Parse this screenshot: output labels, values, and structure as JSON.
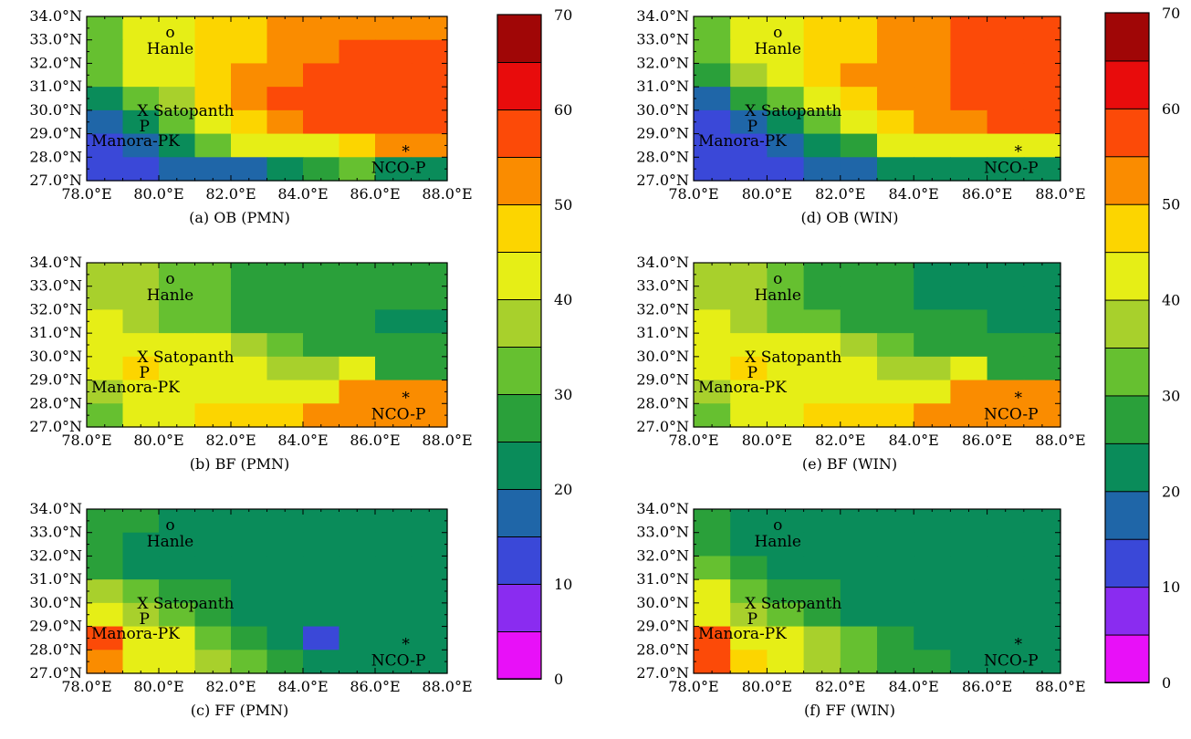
{
  "colorbar": {
    "levels": [
      0,
      5,
      10,
      15,
      20,
      25,
      30,
      35,
      40,
      45,
      50,
      55,
      60,
      65,
      70
    ],
    "colors": [
      "#e810f8",
      "#8a2cf0",
      "#3a48d8",
      "#1f66a8",
      "#0a8c5a",
      "#2aa03a",
      "#66c030",
      "#a8d02c",
      "#e6ee16",
      "#fcd500",
      "#fa8c00",
      "#fc4a08",
      "#e80c0c",
      "#a00606"
    ],
    "tick_labels": [
      "0",
      "10",
      "20",
      "30",
      "40",
      "50",
      "60",
      "70"
    ],
    "tick_values": [
      0,
      10,
      20,
      30,
      40,
      50,
      60,
      70
    ]
  },
  "axes": {
    "x_ticks": [
      "78.0°E",
      "80.0°E",
      "82.0°E",
      "84.0°E",
      "86.0°E",
      "88.0°E"
    ],
    "y_ticks": [
      "34.0°N",
      "33.0°N",
      "32.0°N",
      "31.0°N",
      "30.0°N",
      "29.0°N",
      "28.0°N",
      "27.0°N"
    ],
    "xlim": [
      78,
      88
    ],
    "ylim": [
      27,
      34
    ]
  },
  "sites": [
    {
      "marker": "o",
      "name": "Hanle",
      "lon": 79.0,
      "lat": 32.8
    },
    {
      "marker": "X",
      "name": "Satopanth",
      "lon": 79.25,
      "lat": 30.0
    },
    {
      "marker": "P",
      "name": "Manora-PK",
      "lon": 79.45,
      "lat": 29.25
    },
    {
      "marker": "*",
      "name": "NCO-P",
      "lon": 86.8,
      "lat": 27.95
    }
  ],
  "chart_data": [
    {
      "type": "heatmap",
      "caption": "(a) OB (PMN)",
      "x_lon_range": [
        78,
        88
      ],
      "y_lat_range": [
        27,
        34
      ],
      "cols": 10,
      "rows": 7,
      "values_rows_north_to_south": [
        [
          32,
          42,
          44,
          48,
          48,
          50,
          52,
          52,
          52,
          54
        ],
        [
          34,
          40,
          44,
          48,
          48,
          52,
          52,
          56,
          56,
          56
        ],
        [
          32,
          40,
          44,
          48,
          52,
          52,
          56,
          56,
          56,
          56
        ],
        [
          24,
          32,
          38,
          48,
          52,
          56,
          56,
          56,
          58,
          58
        ],
        [
          17,
          24,
          32,
          44,
          48,
          52,
          56,
          56,
          56,
          56
        ],
        [
          12,
          17,
          24,
          32,
          44,
          44,
          44,
          48,
          52,
          52
        ],
        [
          12,
          12,
          17,
          17,
          17,
          24,
          28,
          32,
          24,
          24
        ]
      ]
    },
    {
      "type": "heatmap",
      "caption": "(d) OB (WIN)",
      "x_lon_range": [
        78,
        88
      ],
      "y_lat_range": [
        27,
        34
      ],
      "cols": 10,
      "rows": 7,
      "values_rows_north_to_south": [
        [
          34,
          42,
          44,
          48,
          48,
          52,
          52,
          56,
          56,
          56
        ],
        [
          32,
          40,
          44,
          48,
          48,
          52,
          52,
          56,
          56,
          56
        ],
        [
          28,
          36,
          44,
          48,
          52,
          52,
          52,
          56,
          56,
          56
        ],
        [
          17,
          28,
          32,
          40,
          48,
          52,
          52,
          56,
          56,
          56
        ],
        [
          12,
          17,
          24,
          32,
          44,
          48,
          52,
          52,
          56,
          56
        ],
        [
          12,
          12,
          17,
          24,
          28,
          40,
          44,
          44,
          44,
          44
        ],
        [
          12,
          12,
          12,
          17,
          17,
          24,
          24,
          24,
          24,
          24
        ]
      ]
    },
    {
      "type": "heatmap",
      "caption": "(b) BF (PMN)",
      "x_lon_range": [
        78,
        88
      ],
      "y_lat_range": [
        27,
        34
      ],
      "cols": 10,
      "rows": 7,
      "values_rows_north_to_south": [
        [
          38,
          36,
          30,
          30,
          28,
          28,
          28,
          28,
          28,
          28
        ],
        [
          38,
          36,
          30,
          30,
          28,
          28,
          28,
          28,
          28,
          28
        ],
        [
          40,
          36,
          32,
          30,
          28,
          28,
          28,
          28,
          24,
          24
        ],
        [
          42,
          44,
          40,
          40,
          36,
          32,
          28,
          28,
          28,
          28
        ],
        [
          42,
          46,
          42,
          40,
          40,
          36,
          36,
          40,
          28,
          28
        ],
        [
          38,
          42,
          42,
          44,
          44,
          44,
          44,
          54,
          52,
          52
        ],
        [
          34,
          40,
          44,
          48,
          48,
          48,
          52,
          52,
          52,
          52
        ]
      ]
    },
    {
      "type": "heatmap",
      "caption": "(e) BF (WIN)",
      "x_lon_range": [
        78,
        88
      ],
      "y_lat_range": [
        27,
        34
      ],
      "cols": 10,
      "rows": 7,
      "values_rows_north_to_south": [
        [
          38,
          36,
          32,
          28,
          28,
          28,
          24,
          24,
          24,
          24
        ],
        [
          38,
          36,
          32,
          28,
          28,
          28,
          24,
          24,
          24,
          24
        ],
        [
          40,
          36,
          32,
          30,
          28,
          28,
          28,
          28,
          24,
          24
        ],
        [
          42,
          44,
          40,
          40,
          36,
          32,
          28,
          28,
          28,
          28
        ],
        [
          42,
          46,
          42,
          40,
          40,
          36,
          36,
          40,
          28,
          28
        ],
        [
          38,
          42,
          42,
          44,
          44,
          44,
          44,
          54,
          52,
          52
        ],
        [
          34,
          40,
          44,
          48,
          48,
          48,
          52,
          52,
          52,
          52
        ]
      ]
    },
    {
      "type": "heatmap",
      "caption": "(c) FF (PMN)",
      "x_lon_range": [
        78,
        88
      ],
      "y_lat_range": [
        27,
        34
      ],
      "cols": 10,
      "rows": 7,
      "values_rows_north_to_south": [
        [
          28,
          28,
          24,
          24,
          24,
          24,
          24,
          24,
          20,
          20
        ],
        [
          28,
          24,
          24,
          24,
          24,
          20,
          20,
          20,
          20,
          20
        ],
        [
          28,
          24,
          24,
          24,
          20,
          20,
          20,
          20,
          20,
          20
        ],
        [
          36,
          30,
          28,
          28,
          20,
          20,
          20,
          20,
          20,
          20
        ],
        [
          42,
          36,
          30,
          28,
          20,
          20,
          20,
          20,
          20,
          20
        ],
        [
          56,
          42,
          40,
          34,
          28,
          20,
          12,
          20,
          20,
          20
        ],
        [
          52,
          44,
          40,
          36,
          32,
          28,
          24,
          24,
          24,
          24
        ]
      ]
    },
    {
      "type": "heatmap",
      "caption": "(f) FF (WIN)",
      "x_lon_range": [
        78,
        88
      ],
      "y_lat_range": [
        27,
        34
      ],
      "cols": 10,
      "rows": 7,
      "values_rows_north_to_south": [
        [
          28,
          24,
          24,
          24,
          24,
          24,
          24,
          24,
          20,
          20
        ],
        [
          28,
          24,
          24,
          24,
          24,
          20,
          20,
          20,
          20,
          20
        ],
        [
          32,
          28,
          24,
          24,
          20,
          20,
          20,
          20,
          20,
          20
        ],
        [
          42,
          32,
          28,
          28,
          24,
          20,
          20,
          20,
          20,
          20
        ],
        [
          44,
          36,
          32,
          28,
          20,
          20,
          20,
          20,
          20,
          20
        ],
        [
          58,
          44,
          40,
          36,
          32,
          28,
          20,
          20,
          20,
          20
        ],
        [
          56,
          48,
          40,
          38,
          32,
          28,
          28,
          24,
          24,
          24
        ]
      ]
    }
  ]
}
